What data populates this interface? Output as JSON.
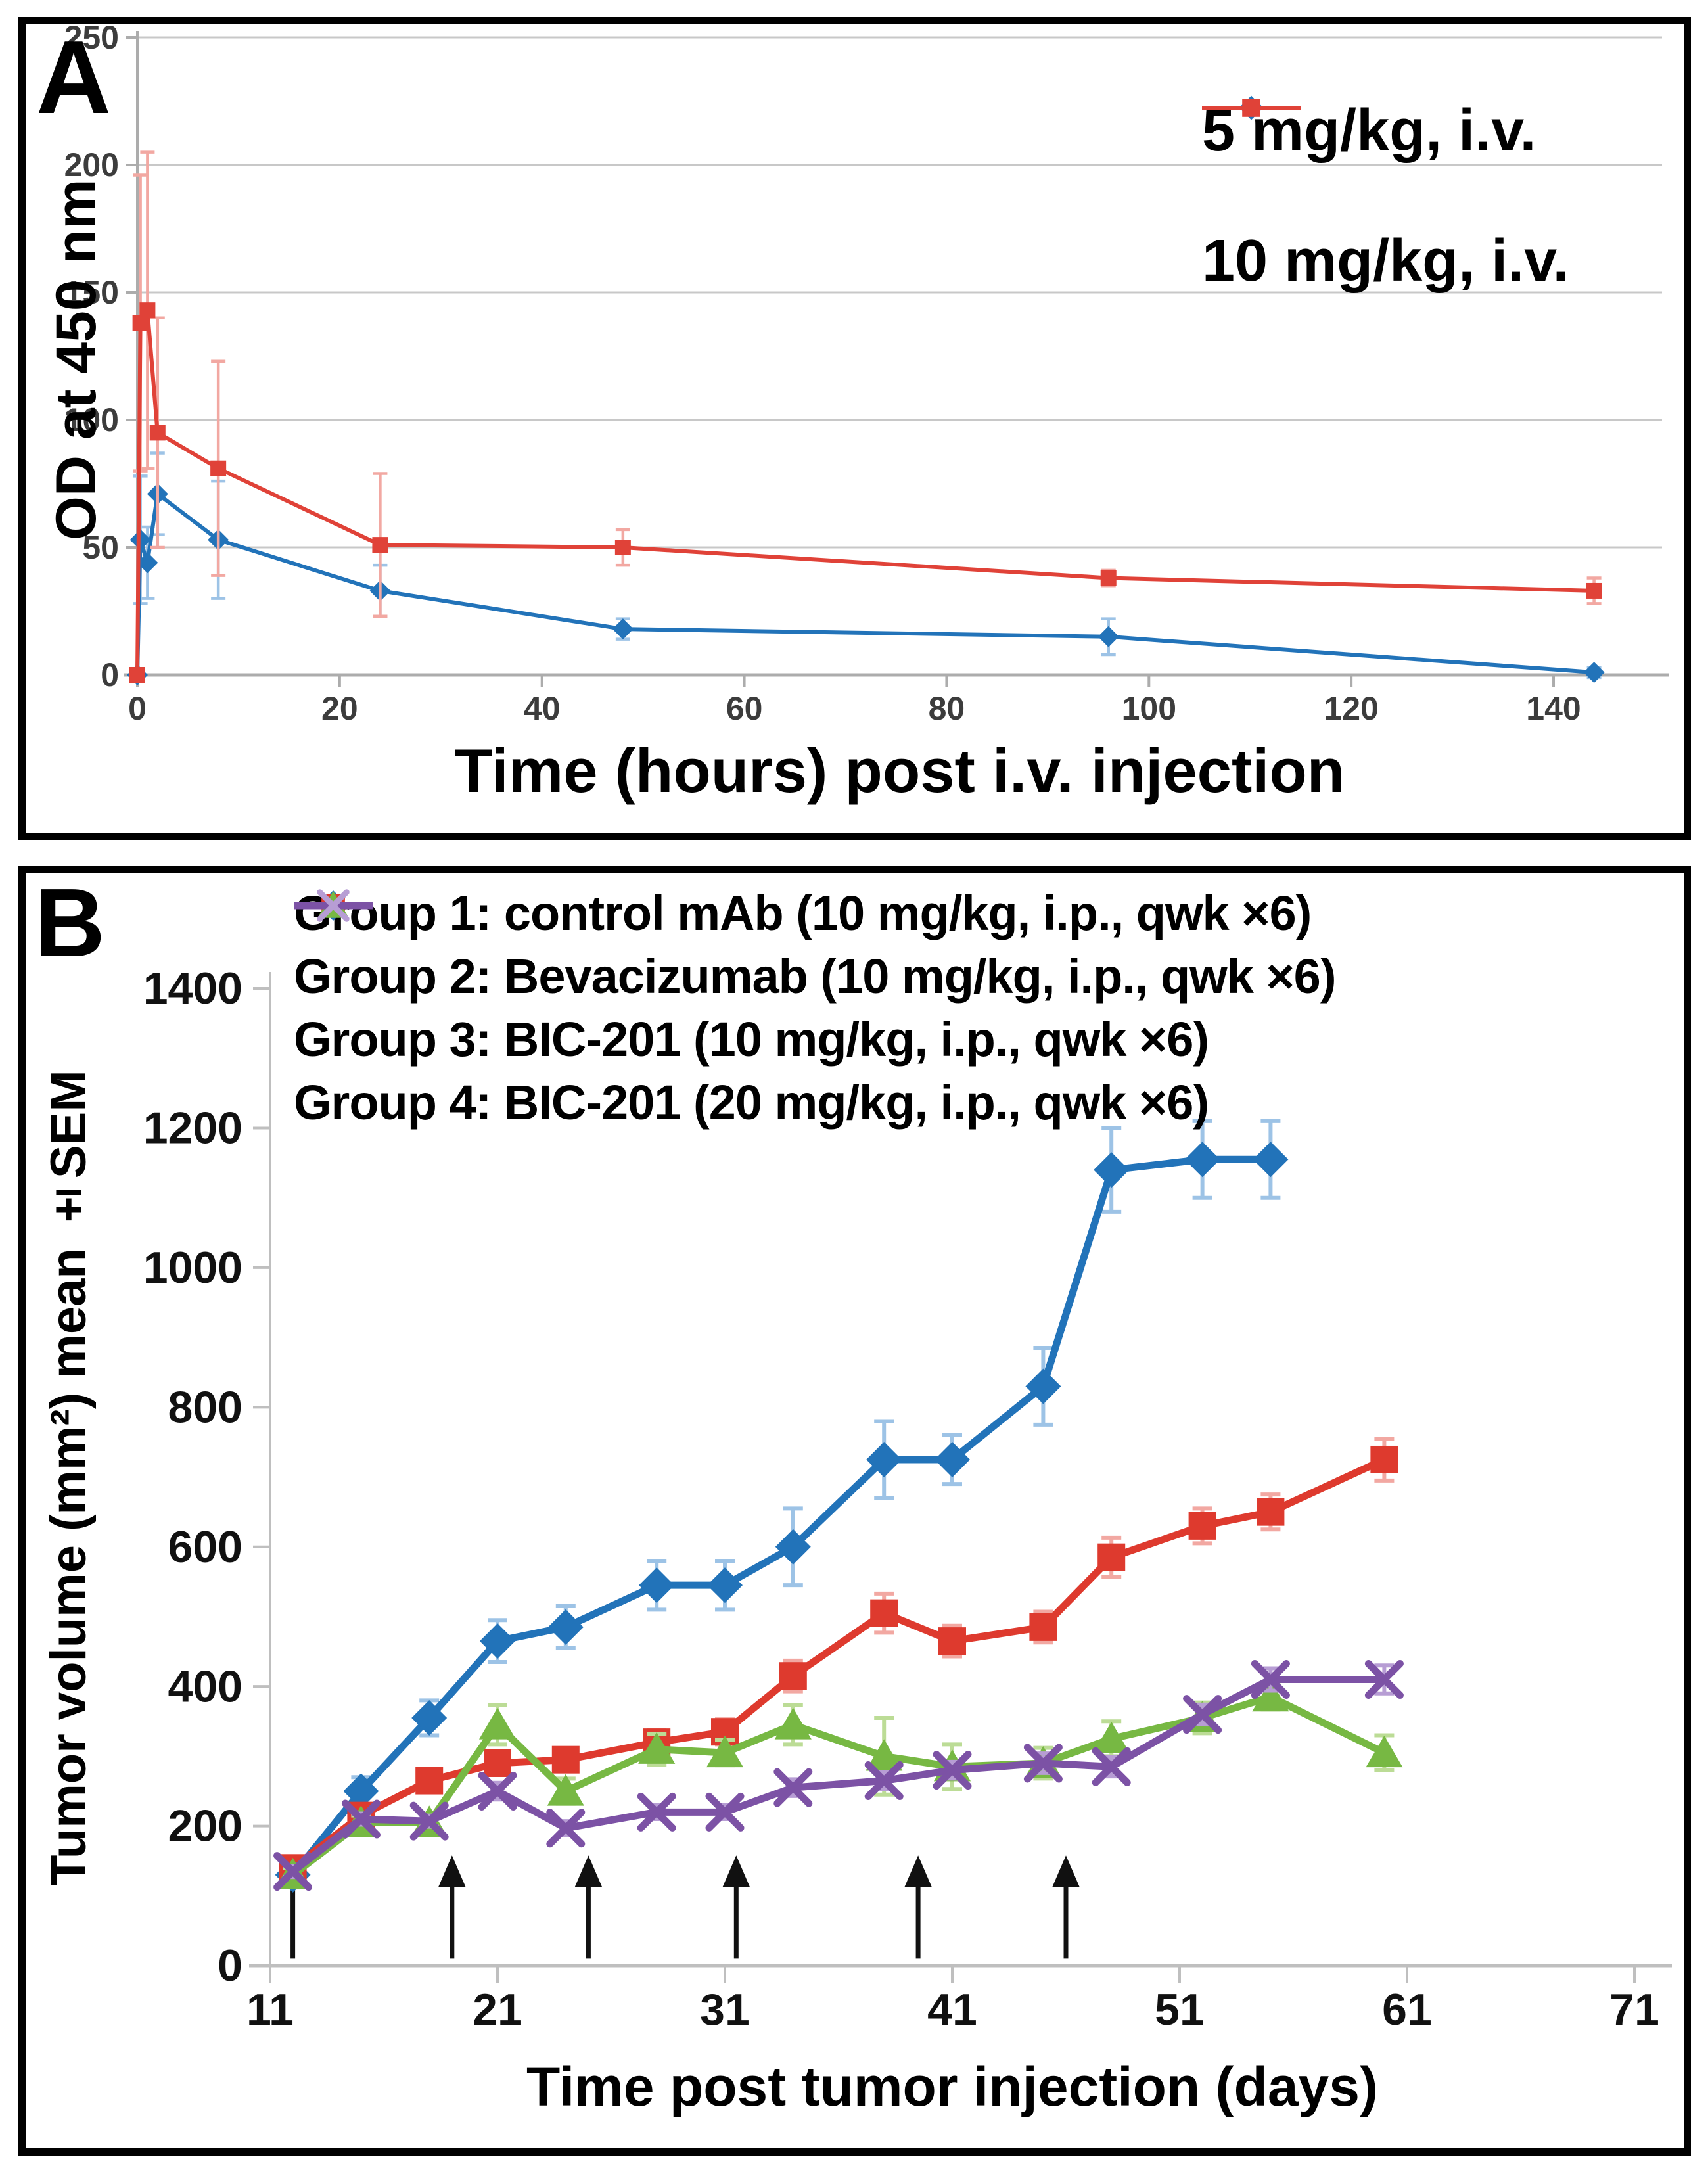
{
  "figure": {
    "panel_labels": [
      "A",
      "B"
    ]
  },
  "chart_data": [
    {
      "type": "line",
      "panel_label": "A",
      "xlabel": "Time (hours) post i.v. injection",
      "ylabel": "OD at 450 nm",
      "xlim": [
        0,
        150
      ],
      "ylim": [
        0,
        250
      ],
      "xticks": [
        0,
        20,
        40,
        60,
        80,
        100,
        120,
        140
      ],
      "yticks": [
        0,
        50,
        100,
        150,
        200,
        250
      ],
      "grid": "horizontal",
      "legend_position": "top-right-inside",
      "series": [
        {
          "name": "5 mg/kg, i.v.",
          "marker": "diamond",
          "color": "#2273B9",
          "error_color": "#9DC3E6",
          "x": [
            0,
            0.3,
            1,
            2,
            8,
            24,
            48,
            96,
            144
          ],
          "y": [
            0,
            53,
            44,
            71,
            53,
            33,
            18,
            15,
            1
          ],
          "err": [
            0,
            25,
            14,
            16,
            23,
            10,
            4,
            7,
            2
          ]
        },
        {
          "name": "10 mg/kg, i.v.",
          "marker": "square",
          "color": "#E04238",
          "error_color": "#F2A8A2",
          "x": [
            0,
            0.3,
            1,
            2,
            8,
            24,
            48,
            96,
            144
          ],
          "y": [
            0,
            138,
            143,
            95,
            81,
            51,
            50,
            38,
            33
          ],
          "err": [
            0,
            58,
            62,
            45,
            42,
            28,
            7,
            3,
            5
          ]
        }
      ]
    },
    {
      "type": "line",
      "panel_label": "B",
      "xlabel": "Time post tumor injection (days)",
      "ylabel": "Tumor volume (mm²) mean ±SEM",
      "xlim": [
        11,
        73
      ],
      "ylim": [
        0,
        1450
      ],
      "xticks": [
        11,
        21,
        31,
        41,
        51,
        61,
        71
      ],
      "yticks": [
        0,
        200,
        400,
        600,
        800,
        1000,
        1200,
        1400
      ],
      "grid": "none",
      "legend_position": "top-left",
      "dose_arrows": {
        "symbol": "up-arrow",
        "days": [
          12,
          19,
          25,
          31.5,
          39.5,
          46
        ]
      },
      "series": [
        {
          "name": "Group 1: control mAb (10 mg/kg, i.p., qwk ×6)",
          "marker": "diamond",
          "color": "#2273B9",
          "error_color": "#9DC3E6",
          "x": [
            12,
            15,
            18,
            21,
            24,
            28,
            31,
            34,
            38,
            41,
            45,
            48,
            52,
            55
          ],
          "y": [
            130,
            250,
            355,
            465,
            485,
            545,
            545,
            600,
            725,
            725,
            830,
            1140,
            1155,
            1155
          ],
          "err": [
            15,
            20,
            25,
            30,
            30,
            35,
            35,
            55,
            55,
            35,
            55,
            60,
            55,
            55
          ]
        },
        {
          "name": "Group 2: Bevacizumab (10 mg/kg, i.p., qwk ×6)",
          "marker": "square",
          "color": "#DE3A2E",
          "error_color": "#F2A8A2",
          "x": [
            12,
            15,
            18,
            21,
            24,
            28,
            31,
            34,
            38,
            41,
            45,
            48,
            52,
            55,
            60
          ],
          "y": [
            140,
            215,
            265,
            290,
            295,
            320,
            335,
            415,
            505,
            465,
            485,
            585,
            630,
            650,
            725
          ],
          "err": [
            10,
            12,
            15,
            15,
            15,
            18,
            18,
            22,
            28,
            22,
            22,
            28,
            25,
            25,
            30
          ]
        },
        {
          "name": "Group 3: BIC-201 (10 mg/kg, i.p., qwk ×6)",
          "marker": "triangle",
          "color": "#77B843",
          "error_color": "#BCDC96",
          "x": [
            12,
            15,
            18,
            21,
            24,
            28,
            31,
            34,
            38,
            41,
            45,
            48,
            52,
            55,
            60
          ],
          "y": [
            130,
            205,
            205,
            345,
            250,
            310,
            305,
            345,
            300,
            285,
            290,
            325,
            355,
            385,
            305
          ],
          "err": [
            10,
            10,
            12,
            28,
            18,
            22,
            18,
            28,
            55,
            32,
            22,
            25,
            22,
            18,
            25
          ]
        },
        {
          "name": "Group 4: BIC-201 (20 mg/kg, i.p., qwk ×6)",
          "marker": "x",
          "color": "#7C52A5",
          "error_color": "#B79DD4",
          "x": [
            12,
            15,
            18,
            21,
            24,
            28,
            31,
            34,
            38,
            41,
            45,
            48,
            52,
            55,
            60
          ],
          "y": [
            135,
            210,
            207,
            250,
            197,
            220,
            220,
            255,
            265,
            280,
            290,
            285,
            360,
            410,
            410
          ],
          "err": [
            8,
            8,
            8,
            12,
            10,
            10,
            10,
            12,
            12,
            12,
            14,
            14,
            14,
            16,
            20
          ]
        }
      ]
    }
  ]
}
